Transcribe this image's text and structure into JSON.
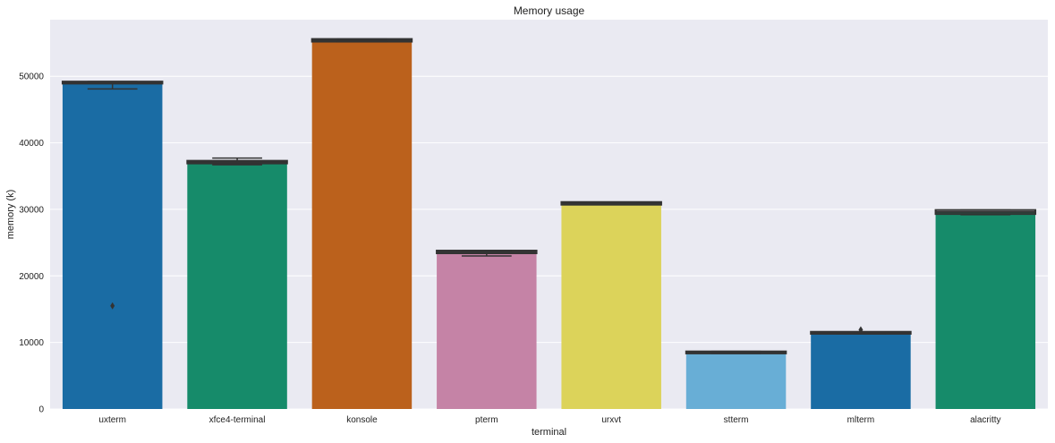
{
  "chart_data": {
    "type": "bar",
    "title": "Memory usage",
    "xlabel": "terminal",
    "ylabel": "memory (k)",
    "ylim": [
      0,
      58500
    ],
    "yticks": [
      0,
      10000,
      20000,
      30000,
      40000,
      50000
    ],
    "ytick_labels": [
      "0",
      "10000",
      "20000",
      "30000",
      "40000",
      "50000"
    ],
    "grid": true,
    "categories": [
      "uxterm",
      "xfce4-terminal",
      "konsole",
      "pterm",
      "urxvt",
      "stterm",
      "mlterm",
      "alacritty"
    ],
    "values": [
      48900,
      37100,
      55400,
      23600,
      30900,
      8500,
      11400,
      29600
    ],
    "colors": [
      "#1a6ca4",
      "#168b6a",
      "#bb611c",
      "#c583a6",
      "#dcd35a",
      "#68aed6",
      "#1a6ca4",
      "#168b6a"
    ],
    "boxes": [
      {
        "q1": 48900,
        "q3": 49200,
        "whisker_low": 48100,
        "whisker_high": 49200,
        "outliers": [
          15500
        ]
      },
      {
        "q1": 36900,
        "q3": 37300,
        "whisker_low": 36700,
        "whisker_high": 37700,
        "outliers": []
      },
      {
        "q1": 55200,
        "q3": 55600,
        "whisker_low": 55200,
        "whisker_high": 55600,
        "outliers": []
      },
      {
        "q1": 23400,
        "q3": 23800,
        "whisker_low": 23000,
        "whisker_high": 23800,
        "outliers": []
      },
      {
        "q1": 30700,
        "q3": 31100,
        "whisker_low": 30700,
        "whisker_high": 31100,
        "outliers": []
      },
      {
        "q1": 8350,
        "q3": 8650,
        "whisker_low": 8350,
        "whisker_high": 8650,
        "outliers": []
      },
      {
        "q1": 11300,
        "q3": 11600,
        "whisker_low": 11300,
        "whisker_high": 11600,
        "outliers": [
          11900
        ]
      },
      {
        "q1": 29300,
        "q3": 29900,
        "whisker_low": 29200,
        "whisker_high": 29900,
        "outliers": []
      }
    ]
  }
}
